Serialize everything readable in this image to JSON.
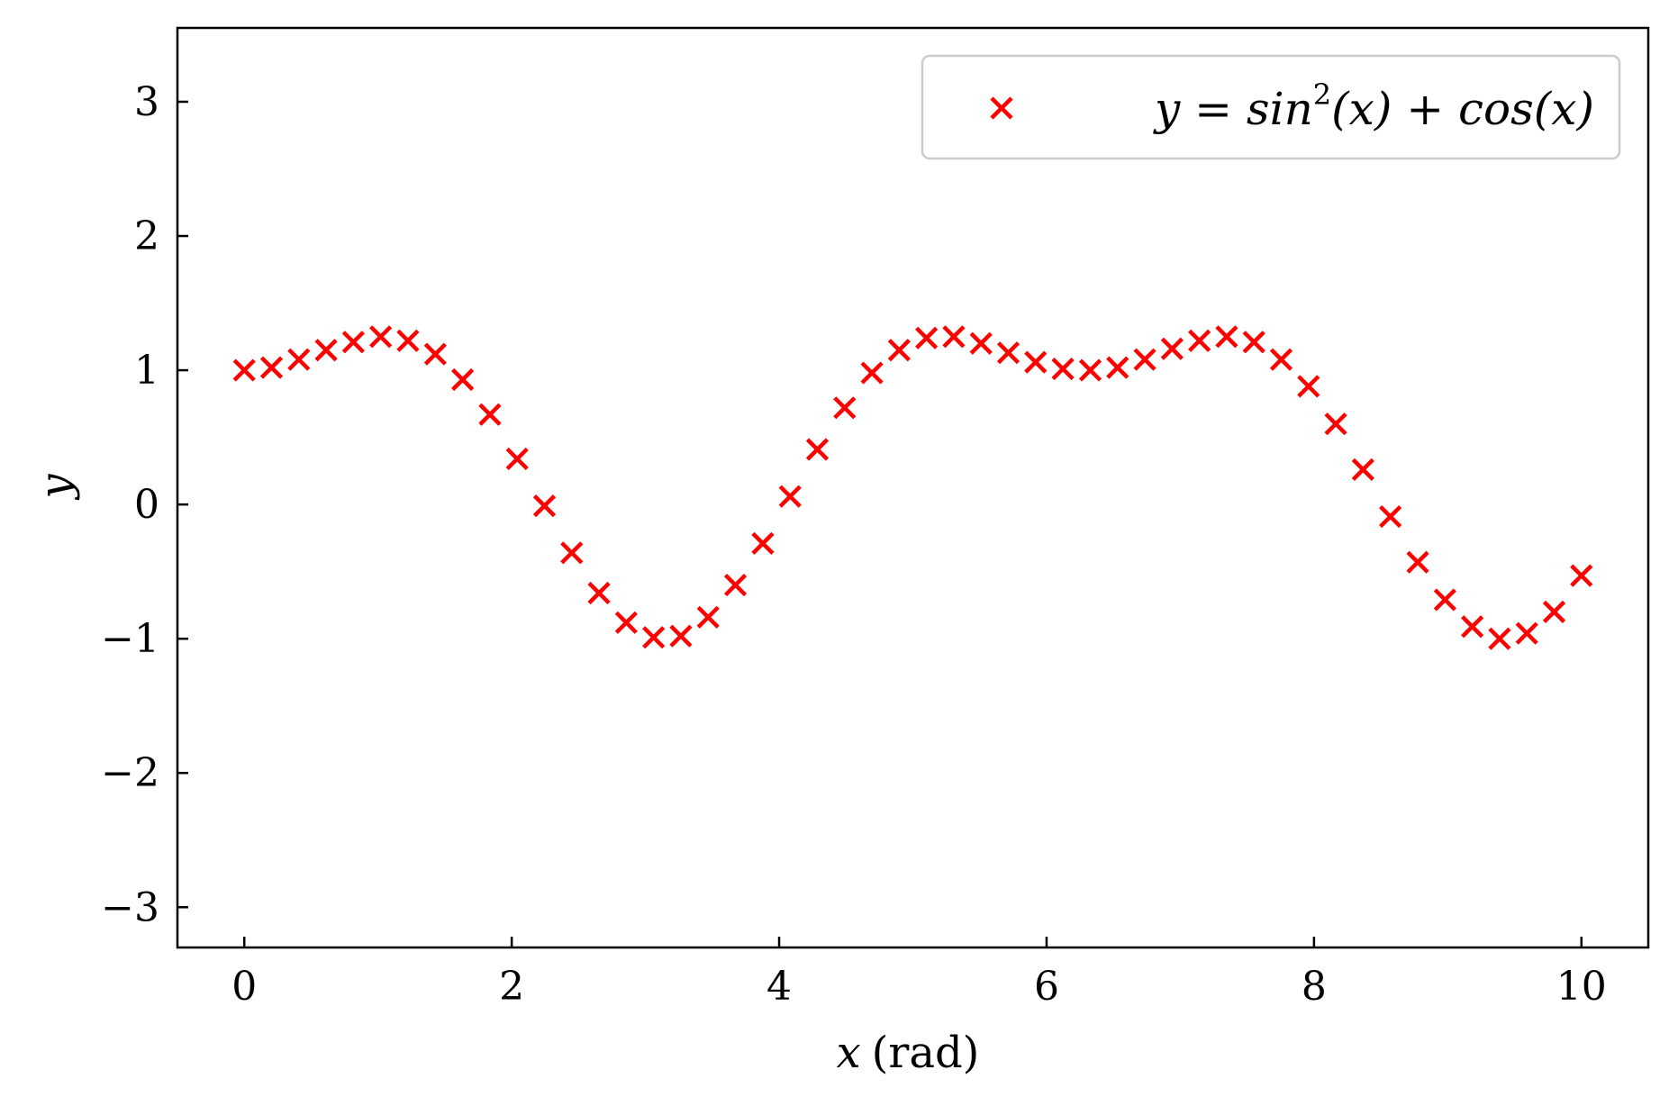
{
  "chart_data": {
    "type": "scatter",
    "title": "",
    "xlabel_var": "x",
    "xlabel_unit": "(rad)",
    "ylabel": "y",
    "xlim": [
      -0.5,
      10.5
    ],
    "ylim": [
      -3.3,
      3.55
    ],
    "xticks": [
      0,
      2,
      4,
      6,
      8,
      10
    ],
    "xtick_labels": [
      "0",
      "2",
      "4",
      "6",
      "8",
      "10"
    ],
    "yticks": [
      -3,
      -2,
      -1,
      0,
      1,
      2,
      3
    ],
    "ytick_labels": [
      "−3",
      "−2",
      "−1",
      "0",
      "1",
      "2",
      "3"
    ],
    "grid": false,
    "legend_position": "top-right",
    "series": [
      {
        "name": "y = sin²(x) + cos(x)",
        "legend": {
          "base": "y = sin",
          "sup": "2",
          "rest": "(x) + cos(x)"
        },
        "marker": "x",
        "color": "#ff0000",
        "x": [
          0.0,
          0.204,
          0.408,
          0.612,
          0.816,
          1.02,
          1.224,
          1.429,
          1.633,
          1.837,
          2.041,
          2.245,
          2.449,
          2.653,
          2.857,
          3.061,
          3.265,
          3.469,
          3.673,
          3.878,
          4.082,
          4.286,
          4.49,
          4.694,
          4.898,
          5.102,
          5.306,
          5.51,
          5.714,
          5.918,
          6.122,
          6.327,
          6.531,
          6.735,
          6.939,
          7.143,
          7.347,
          7.551,
          7.755,
          7.959,
          8.163,
          8.367,
          8.571,
          8.776,
          8.98,
          9.184,
          9.388,
          9.592,
          9.796,
          10.0
        ],
        "y": [
          1.0,
          1.02,
          1.08,
          1.15,
          1.21,
          1.25,
          1.22,
          1.12,
          0.93,
          0.67,
          0.34,
          -0.01,
          -0.36,
          -0.66,
          -0.88,
          -0.99,
          -0.98,
          -0.84,
          -0.6,
          -0.29,
          0.06,
          0.41,
          0.72,
          0.98,
          1.15,
          1.24,
          1.25,
          1.2,
          1.13,
          1.06,
          1.01,
          1.0,
          1.02,
          1.08,
          1.16,
          1.22,
          1.25,
          1.21,
          1.08,
          0.88,
          0.6,
          0.26,
          -0.09,
          -0.43,
          -0.71,
          -0.91,
          -1.0,
          -0.96,
          -0.8,
          -0.53
        ]
      }
    ]
  }
}
